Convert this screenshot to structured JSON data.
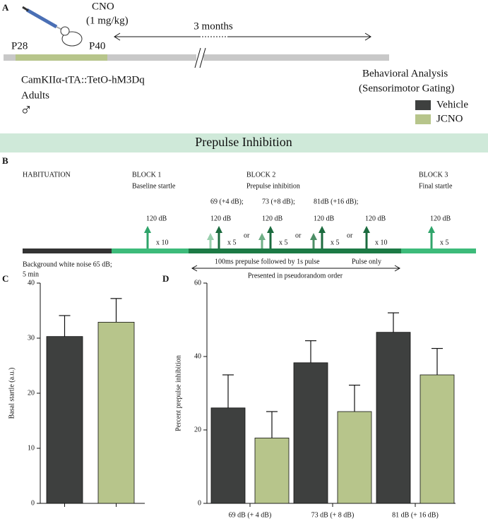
{
  "panel_a": {
    "label": "A",
    "drug": "CNO",
    "dose": "(1 mg/kg)",
    "start": "P28",
    "end": "P40",
    "duration": "3 months",
    "mouse_line": "CamKIIα-tTA::TetO-hM3Dq",
    "age": "Adults",
    "sex": "♂",
    "analysis": [
      "Behavioral Analysis",
      "(Sensorimotor Gating)"
    ]
  },
  "banner": "Prepulse Inhibition",
  "panel_b": {
    "label": "B",
    "phases": [
      {
        "title": "HABITUATION"
      },
      {
        "title": "BLOCK 1",
        "subtitle": "Baseline startle"
      },
      {
        "title": "BLOCK 2",
        "subtitle": "Prepulse inhibition"
      },
      {
        "title": "BLOCK 3",
        "subtitle": "Final startle"
      }
    ],
    "stimuli": [
      {
        "lines": [
          "120 dB"
        ],
        "count": "x 10"
      },
      {
        "lines": [
          "69 (+4 dB);",
          "120 dB"
        ],
        "count": "x 5",
        "join": "or"
      },
      {
        "lines": [
          "73 (+8 dB);",
          "120 dB"
        ],
        "count": "x 5",
        "join": "or"
      },
      {
        "lines": [
          "81dB (+16 dB);",
          "120 dB"
        ],
        "count": "x 5",
        "join": "or"
      },
      {
        "lines": [
          "120 dB"
        ],
        "count": "x 10"
      },
      {
        "lines": [
          "120 dB"
        ],
        "count": "x 5"
      }
    ],
    "background": [
      "Background white noise 65 dB;",
      "5 min"
    ],
    "prepulse_note": "100ms prepulse followed by 1s pulse",
    "pulse_note": "Pulse only",
    "order_note": "Presented in pseudorandom order"
  },
  "chart_data": [
    {
      "type": "bar",
      "label": "C",
      "ylabel": "Basal startle (a.u.)",
      "categories": [
        null
      ],
      "ylim": [
        0,
        40
      ],
      "yticks": [
        0,
        10,
        20,
        30,
        40
      ],
      "series": [
        {
          "name": "Vehicle",
          "color": "#3e403f",
          "values": [
            30.3
          ],
          "errors": [
            3.8
          ]
        },
        {
          "name": "JCNO",
          "color": "#b7c58b",
          "values": [
            32.9
          ],
          "errors": [
            4.3
          ]
        }
      ]
    },
    {
      "type": "bar",
      "label": "D",
      "ylabel": "Percent prepulse inhibition",
      "categories": [
        "69 dB (+ 4 dB)",
        "73 dB (+ 8 dB)",
        "81 dB (+ 16 dB)"
      ],
      "ylim": [
        0,
        60
      ],
      "yticks": [
        0,
        20,
        40,
        60
      ],
      "series": [
        {
          "name": "Vehicle",
          "color": "#3e403f",
          "values": [
            26,
            38.3,
            46.6
          ],
          "errors": [
            9,
            6,
            5.3
          ]
        },
        {
          "name": "JCNO",
          "color": "#b7c58b",
          "values": [
            17.8,
            25,
            35
          ],
          "errors": [
            7.2,
            7.2,
            7.2
          ]
        }
      ]
    }
  ]
}
